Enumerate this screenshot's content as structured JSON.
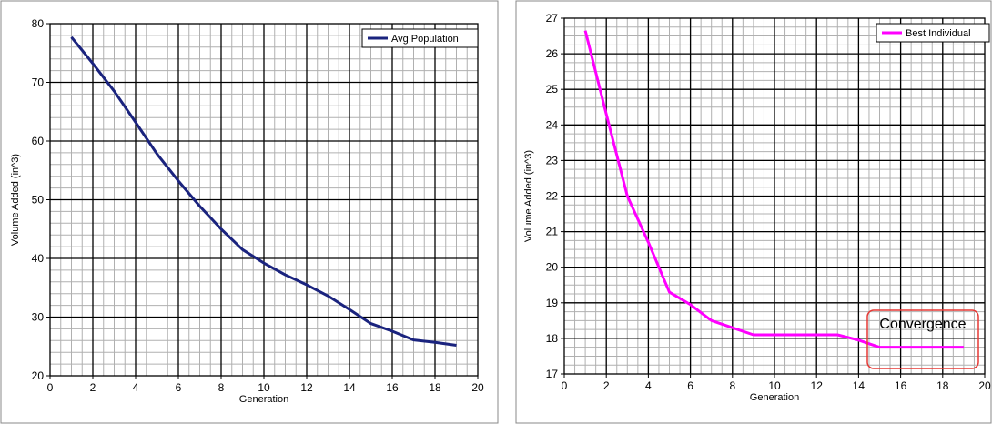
{
  "chart_data": [
    {
      "type": "line",
      "title": "",
      "xlabel": "Generation",
      "ylabel": "Volume Added (in^3)",
      "xlim": [
        0,
        20
      ],
      "ylim": [
        20,
        80
      ],
      "x_ticks": [
        0,
        2,
        4,
        6,
        8,
        10,
        12,
        14,
        16,
        18,
        20
      ],
      "y_ticks": [
        20,
        30,
        40,
        50,
        60,
        70,
        80
      ],
      "grid": true,
      "legend_position": "top-right",
      "series": [
        {
          "name": "Avg Population",
          "color": "#1a237e",
          "x": [
            1,
            2,
            3,
            4,
            5,
            6,
            7,
            8,
            9,
            10,
            11,
            12,
            13,
            14,
            15,
            16,
            17,
            18,
            19
          ],
          "y": [
            77.7,
            73.2,
            68.5,
            63.2,
            57.8,
            53.2,
            48.9,
            45.0,
            41.5,
            39.2,
            37.2,
            35.5,
            33.6,
            31.3,
            28.9,
            27.6,
            26.1,
            25.7,
            25.2
          ]
        }
      ]
    },
    {
      "type": "line",
      "title": "",
      "xlabel": "Generation",
      "ylabel": "Volume Added (in^3)",
      "xlim": [
        0,
        20
      ],
      "ylim": [
        17,
        27
      ],
      "x_ticks": [
        0,
        2,
        4,
        6,
        8,
        10,
        12,
        14,
        16,
        18,
        20
      ],
      "y_ticks": [
        17,
        18,
        19,
        20,
        21,
        22,
        23,
        24,
        25,
        26,
        27
      ],
      "grid": true,
      "legend_position": "top-right",
      "annotation": "Convergence",
      "annotation_color": "#e53935",
      "series": [
        {
          "name": "Best Individual",
          "color": "#ff00ff",
          "x": [
            1,
            2,
            3,
            4,
            5,
            6,
            7,
            8,
            9,
            10,
            11,
            12,
            13,
            14,
            15,
            16,
            17,
            18,
            19
          ],
          "y": [
            26.65,
            24.3,
            22.0,
            20.7,
            19.3,
            18.95,
            18.5,
            18.3,
            18.1,
            18.1,
            18.1,
            18.1,
            18.1,
            17.95,
            17.75,
            17.75,
            17.75,
            17.75,
            17.75
          ]
        }
      ]
    }
  ]
}
